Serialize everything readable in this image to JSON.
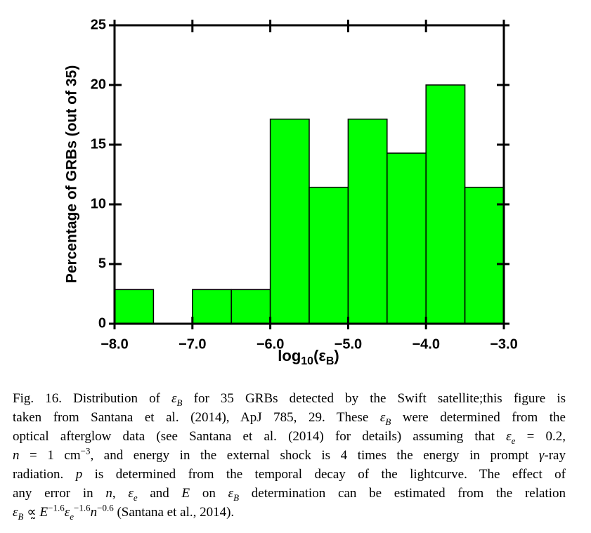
{
  "chart_data": {
    "type": "histogram",
    "bins": [
      -8,
      -7.5,
      -7,
      -6.5,
      -6,
      -5.5,
      -5,
      -4.5,
      -4,
      -3.5,
      -3
    ],
    "values": [
      2.86,
      0,
      2.86,
      2.86,
      17.14,
      11.43,
      17.14,
      14.29,
      20,
      11.43
    ],
    "color": "#00ff00",
    "xlim": [
      -8,
      -3
    ],
    "xticks": [
      {
        "value": -8,
        "label": "−8.0"
      },
      {
        "value": -7,
        "label": "−7.0"
      },
      {
        "value": -6,
        "label": "−6.0"
      },
      {
        "value": -5,
        "label": "−5.0"
      },
      {
        "value": -4,
        "label": "−4.0"
      },
      {
        "value": -3,
        "label": "−3.0"
      }
    ],
    "ylim": [
      0,
      25
    ],
    "yticks": [
      0,
      5,
      10,
      15,
      20,
      25
    ],
    "xlabel": [
      {
        "text": "log"
      },
      {
        "text": "10",
        "style": "sub"
      },
      {
        "text": "(ε"
      },
      {
        "text": "B",
        "style": "sub"
      },
      {
        "text": ")"
      }
    ],
    "ylabel": "Percentage of GRBs (out of 35)"
  },
  "caption": {
    "lines": [
      [
        {
          "text": "Fig. 16. Distribution of "
        },
        {
          "text": "ε",
          "style": "i"
        },
        {
          "text": "B",
          "style": "sub"
        },
        {
          "text": " for 35 GRBs detected by the Swift satellite;this figure is"
        }
      ],
      [
        {
          "text": "taken from Santana et al. (2014), ApJ 785, 29. These "
        },
        {
          "text": "ε",
          "style": "i"
        },
        {
          "text": "B",
          "style": "sub"
        },
        {
          "text": " were determined from the"
        }
      ],
      [
        {
          "text": "optical afterglow data (see Santana et al. (2014) for details) assuming that "
        },
        {
          "text": "ε",
          "style": "i"
        },
        {
          "text": "e",
          "style": "sub"
        },
        {
          "text": " = 0.2,"
        }
      ],
      [
        {
          "text": "n",
          "style": "i"
        },
        {
          "text": " = 1 cm"
        },
        {
          "text": "−3",
          "style": "sup"
        },
        {
          "text": ", and energy in the external shock is 4 times the energy in prompt "
        },
        {
          "text": "γ",
          "style": "i"
        },
        {
          "text": "-ray"
        }
      ],
      [
        {
          "text": "radiation. "
        },
        {
          "text": "p",
          "style": "i"
        },
        {
          "text": " is determined from the temporal decay of the lightcurve. The effect of"
        }
      ],
      [
        {
          "text": "any error in "
        },
        {
          "text": "n",
          "style": "i"
        },
        {
          "text": ", "
        },
        {
          "text": "ε",
          "style": "i"
        },
        {
          "text": "e",
          "style": "sub"
        },
        {
          "text": " and "
        },
        {
          "text": "E",
          "style": "i"
        },
        {
          "text": " on "
        },
        {
          "text": "ε",
          "style": "i"
        },
        {
          "text": "B",
          "style": "sub"
        },
        {
          "text": " determination can be estimated from the relation"
        }
      ],
      [
        {
          "text": "ε",
          "style": "i"
        },
        {
          "text": "B",
          "style": "sub"
        },
        {
          "text": " ∝̰ "
        },
        {
          "text": "E",
          "style": "i"
        },
        {
          "text": "−1.6",
          "style": "sup"
        },
        {
          "text": "ε",
          "style": "i"
        },
        {
          "text": "e",
          "style": "sub"
        },
        {
          "text": "−1.6",
          "style": "sup"
        },
        {
          "text": "n",
          "style": "i"
        },
        {
          "text": "−0.6",
          "style": "sup"
        },
        {
          "text": " (Santana et al., 2014)."
        }
      ]
    ]
  }
}
